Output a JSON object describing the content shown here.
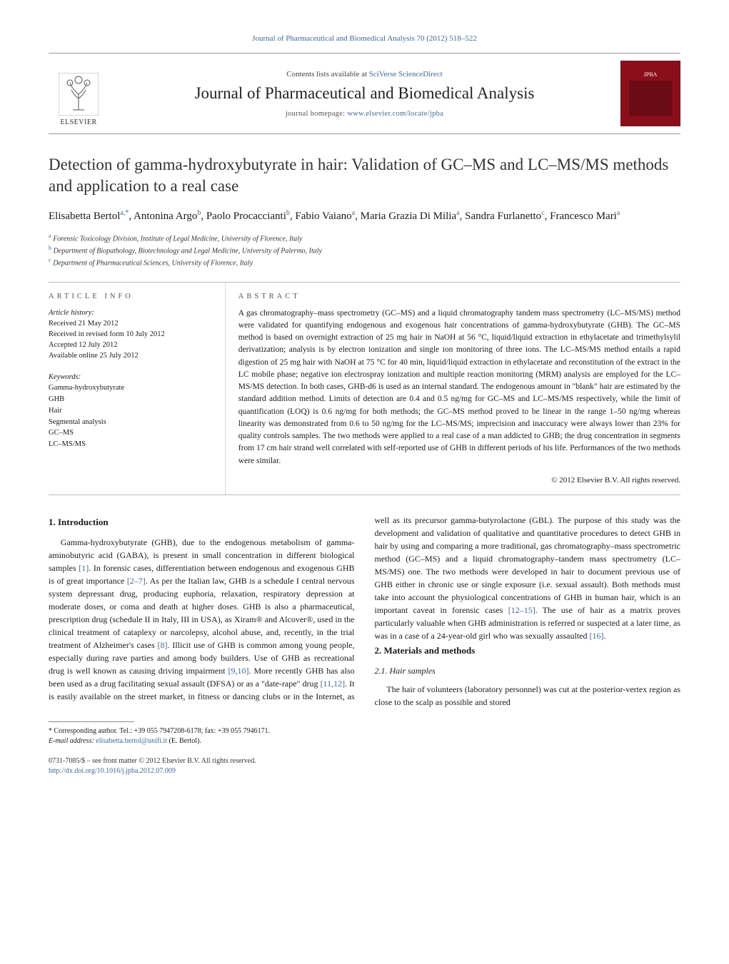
{
  "header": {
    "citation": "Journal of Pharmaceutical and Biomedical Analysis 70 (2012) 518–522",
    "contents_prefix": "Contents lists available at ",
    "contents_link": "SciVerse ScienceDirect",
    "journal_name": "Journal of Pharmaceutical and Biomedical Analysis",
    "homepage_prefix": "journal homepage: ",
    "homepage_link": "www.elsevier.com/locate/jpba",
    "publisher": "ELSEVIER",
    "cover_label": "JPBA"
  },
  "article": {
    "title": "Detection of gamma-hydroxybutyrate in hair: Validation of GC–MS and LC–MS/MS methods and application to a real case",
    "authors_html": "Elisabetta Bertol<sup>a,*</sup>, Antonina Argo<sup>b</sup>, Paolo Procaccianti<sup>b</sup>, Fabio Vaiano<sup>a</sup>, Maria Grazia Di Milia<sup>a</sup>, Sandra Furlanetto<sup>c</sup>, Francesco Mari<sup>a</sup>",
    "affiliations": [
      {
        "key": "a",
        "text": "Forensic Toxicology Division, Institute of Legal Medicine, University of Florence, Italy"
      },
      {
        "key": "b",
        "text": "Department of Biopathology, Biotechnology and Legal Medicine, University of Palermo, Italy"
      },
      {
        "key": "c",
        "text": "Department of Pharmaceutical Sciences, University of Florence, Italy"
      }
    ]
  },
  "info": {
    "heading": "ARTICLE INFO",
    "history_label": "Article history:",
    "history": [
      "Received 21 May 2012",
      "Received in revised form 10 July 2012",
      "Accepted 12 July 2012",
      "Available online 25 July 2012"
    ],
    "keywords_label": "Keywords:",
    "keywords": [
      "Gamma-hydroxybutyrate",
      "GHB",
      "Hair",
      "Segmental analysis",
      "GC–MS",
      "LC–MS/MS"
    ]
  },
  "abstract": {
    "heading": "ABSTRACT",
    "text": "A gas chromatography–mass spectrometry (GC–MS) and a liquid chromatography tandem mass spectrometry (LC–MS/MS) method were validated for quantifying endogenous and exogenous hair concentrations of gamma-hydroxybutyrate (GHB). The GC–MS method is based on overnight extraction of 25 mg hair in NaOH at 56 °C, liquid/liquid extraction in ethylacetate and trimethylsylil derivatization; analysis is by electron ionization and single ion monitoring of three ions. The LC–MS/MS method entails a rapid digestion of 25 mg hair with NaOH at 75 °C for 40 min, liquid/liquid extraction in ethylacetate and reconstitution of the extract in the LC mobile phase; negative ion electrospray ionization and multiple reaction monitoring (MRM) analysis are employed for the LC–MS/MS detection. In both cases, GHB-d6 is used as an internal standard. The endogenous amount in \"blank\" hair are estimated by the standard addition method. Limits of detection are 0.4 and 0.5 ng/mg for GC–MS and LC–MS/MS respectively, while the limit of quantification (LOQ) is 0.6 ng/mg for both methods; the GC–MS method proved to be linear in the range 1–50 ng/mg whereas linearity was demonstrated from 0.6 to 50 ng/mg for the LC–MS/MS; imprecision and inaccuracy were always lower than 23% for quality controls samples. The two methods were applied to a real case of a man addicted to GHB; the drug concentration in segments from 17 cm hair strand well correlated with self-reported use of GHB in different periods of his life. Performances of the two methods were similar.",
    "copyright": "© 2012 Elsevier B.V. All rights reserved."
  },
  "sections": {
    "s1_title": "1. Introduction",
    "s1_p1a": "Gamma-hydroxybutyrate (GHB), due to the endogenous metabolism of gamma-aminobutyric acid (GABA), is present in small concentration in different biological samples ",
    "s1_ref1": "[1]",
    "s1_p1b": ". In forensic cases, differentiation between endogenous and exogenous GHB is of great importance ",
    "s1_ref2": "[2–7]",
    "s1_p1c": ". As per the Italian law, GHB is a schedule I central nervous system depressant drug, producing euphoria, relaxation, respiratory depression at moderate doses, or coma and death at higher doses. GHB is also a pharmaceutical, prescription drug (schedule II in Italy, III in USA), as Xiram® and Alcover®, used in the clinical treatment of cataplexy or narcolepsy, alcohol abuse, and, recently, in the trial treatment of Alzheimer's cases ",
    "s1_ref3": "[8]",
    "s1_p1d": ". Illicit use of GHB is common among young people, especially during rave parties and among body builders. Use of GHB as recreational drug is well known as causing driving impairment ",
    "s1_ref4": "[9,10]",
    "s1_p1e": ". More recently GHB has also been used as a drug facilitating sexual assault (DFSA) ",
    "s1_p2a": "or as a \"date-rape\" drug ",
    "s1_ref5": "[11,12]",
    "s1_p2b": ". It is easily available on the street market, in fitness or dancing clubs or in the Internet, as well as its precursor gamma-butyrolactone (GBL). The purpose of this study was the development and validation of qualitative and quantitative procedures to detect GHB in hair by using and comparing a more traditional, gas chromatography–mass spectrometric method (GC–MS) and a liquid chromatography–tandem mass spectrometry (LC–MS/MS) one. The two methods were developed in hair to document previous use of GHB either in chronic use or single exposure (i.e. sexual assault). Both methods must take into account the physiological concentrations of GHB in human hair, which is an important caveat in forensic cases ",
    "s1_ref6": "[12–15]",
    "s1_p2c": ". The use of hair as a matrix proves particularly valuable when GHB administration is referred or suspected at a later time, as was in a case of a 24-year-old girl who was sexually assaulted ",
    "s1_ref7": "[16]",
    "s1_p2d": ".",
    "s2_title": "2. Materials and methods",
    "s2_1_title": "2.1. Hair samples",
    "s2_1_p1": "The hair of volunteers (laboratory personnel) was cut at the posterior-vertex region as close to the scalp as possible and stored"
  },
  "footnote": {
    "corr_label": "* Corresponding author. Tel.: +39 055 7947208-6178; fax: +39 055 7946171.",
    "email_label": "E-mail address: ",
    "email": "elisabetta.bertol@unifi.it",
    "email_suffix": " (E. Bertol)."
  },
  "footer": {
    "issn": "0731-7085/$ – see front matter © 2012 Elsevier B.V. All rights reserved.",
    "doi_label": "http://dx.doi.org/",
    "doi": "10.1016/j.jpba.2012.07.009"
  },
  "colors": {
    "link": "#3a6ab0",
    "cover_bg": "#8a0f1a"
  }
}
